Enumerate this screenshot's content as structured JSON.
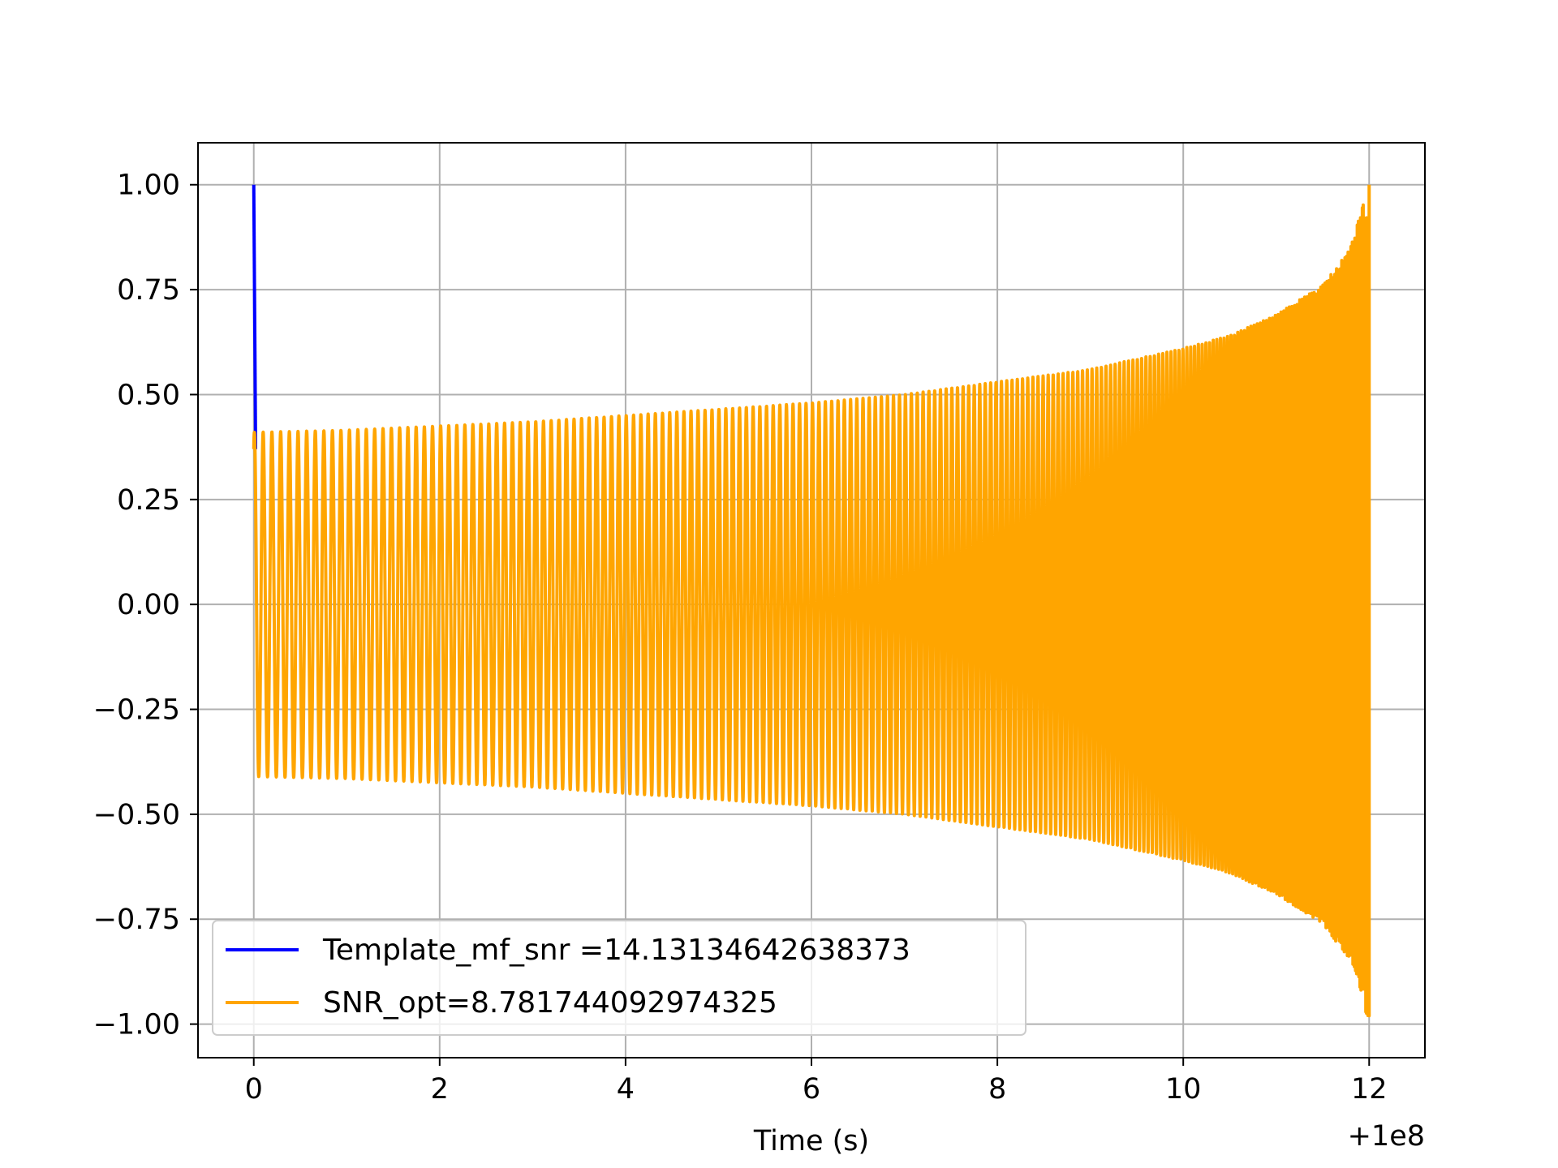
{
  "chart_data": {
    "type": "line",
    "title": "",
    "xlabel": "Time (s)",
    "ylabel": "",
    "x_offset_label": "+1e8",
    "xlim": [
      -0.6,
      12.6
    ],
    "ylim": [
      -1.08,
      1.1
    ],
    "xticks": [
      0,
      2,
      4,
      6,
      8,
      10,
      12
    ],
    "xtick_labels": [
      "0",
      "2",
      "4",
      "6",
      "8",
      "10",
      "12"
    ],
    "yticks": [
      1.0,
      0.75,
      0.5,
      0.25,
      0.0,
      -0.25,
      -0.5,
      -0.75,
      -1.0
    ],
    "ytick_labels": [
      "1.00",
      "0.75",
      "0.50",
      "0.25",
      "0.00",
      "−0.25",
      "−0.50",
      "−0.75",
      "−1.00"
    ],
    "grid": true,
    "legend_position": "lower-left",
    "series": [
      {
        "name": "Template_mf_snr =14.13134642638373",
        "color": "#0000ff",
        "description_points": {
          "x": [
            0.0,
            0.0,
            0.0,
            12.0
          ],
          "y": [
            1.0,
            0.37,
            0.0,
            1.0
          ]
        }
      },
      {
        "name": "SNR_opt=8.781744092974325",
        "color": "#ffa500",
        "envelope": {
          "x": [
            0.0,
            1.0,
            2.0,
            3.0,
            4.0,
            5.0,
            6.0,
            7.0,
            8.0,
            9.0,
            10.0,
            10.5,
            11.0,
            11.5,
            11.8,
            12.0
          ],
          "amplitude": [
            0.41,
            0.415,
            0.425,
            0.435,
            0.45,
            0.465,
            0.48,
            0.5,
            0.53,
            0.56,
            0.61,
            0.64,
            0.69,
            0.76,
            0.85,
            1.0
          ]
        },
        "cycles_count": 230
      }
    ]
  }
}
